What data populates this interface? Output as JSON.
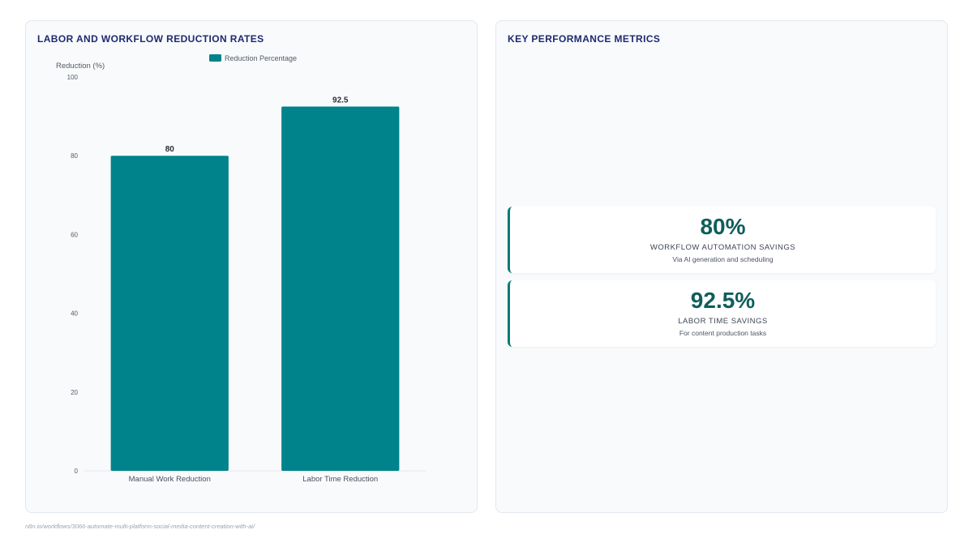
{
  "left_panel": {
    "title": "LABOR AND WORKFLOW REDUCTION RATES"
  },
  "right_panel": {
    "title": "KEY PERFORMANCE METRICS",
    "metrics": [
      {
        "value": "80%",
        "label": "WORKFLOW AUTOMATION SAVINGS",
        "description": "Via AI generation and scheduling"
      },
      {
        "value": "92.5%",
        "label": "LABOR TIME SAVINGS",
        "description": "For content production tasks"
      }
    ]
  },
  "footer": {
    "url": "n8n.io/workflows/3066-automate-multi-platform-social-media-content-creation-with-ai/"
  },
  "colors": {
    "bar": "#00838a",
    "accent": "#0b7a75",
    "title": "#1e2a6e"
  },
  "chart_data": {
    "type": "bar",
    "categories": [
      "Manual Work Reduction",
      "Labor Time Reduction"
    ],
    "series": [
      {
        "name": "Reduction Percentage",
        "values": [
          80,
          92.5
        ]
      }
    ],
    "ylabel": "Reduction (%)",
    "ylim": [
      0,
      100
    ],
    "yticks": [
      0,
      20,
      40,
      60,
      80,
      100
    ],
    "grid": false,
    "legend": "top-center",
    "data_labels": [
      "80",
      "92.5"
    ]
  }
}
